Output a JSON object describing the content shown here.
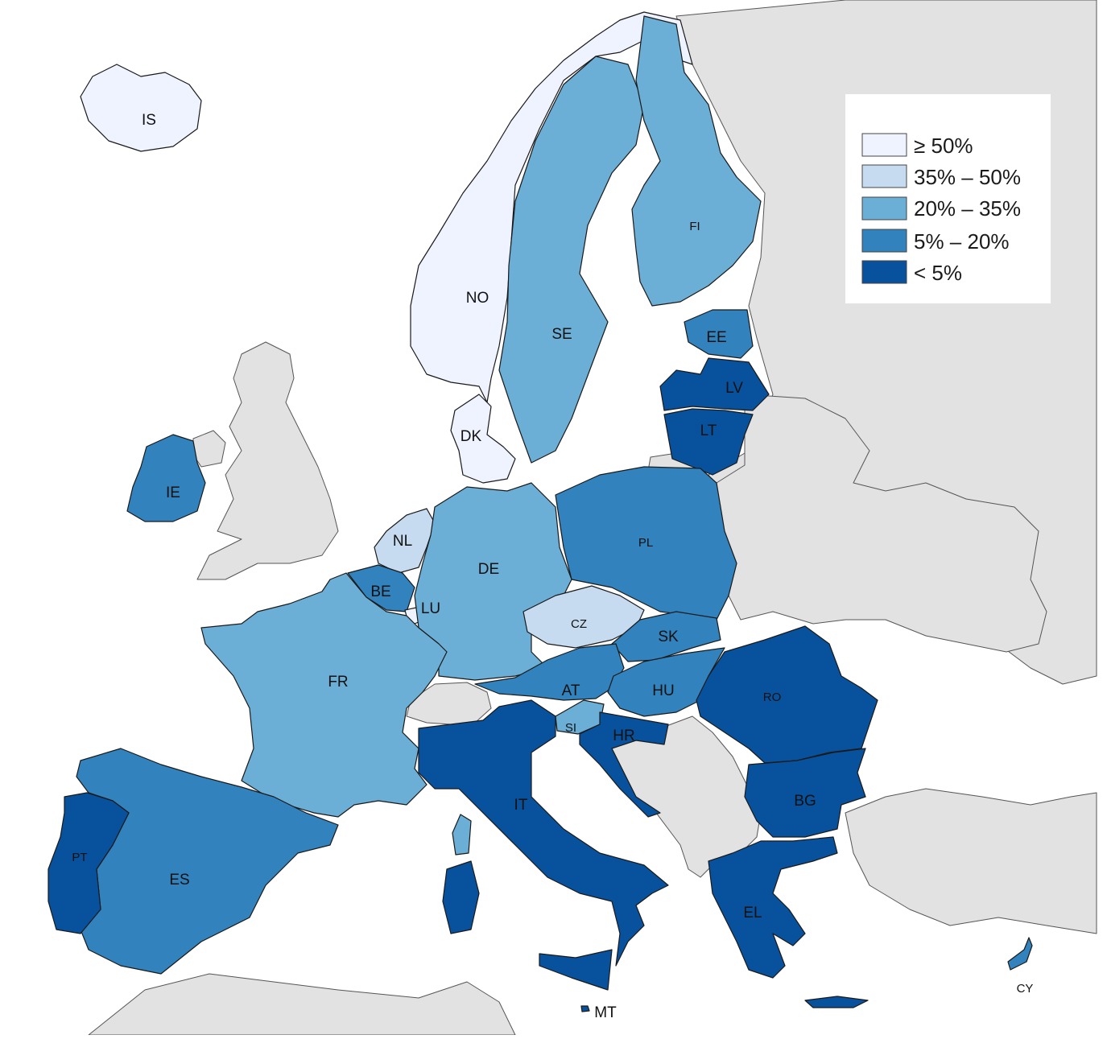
{
  "legend": {
    "classes": [
      {
        "id": "c1",
        "label": "≥ 50%",
        "color": "#eff3ff"
      },
      {
        "id": "c2",
        "label": "35% – 50%",
        "color": "#c6dbef"
      },
      {
        "id": "c3",
        "label": "20% – 35%",
        "color": "#6baed6"
      },
      {
        "id": "c4",
        "label": "5% – 20%",
        "color": "#3182bd"
      },
      {
        "id": "c5",
        "label": "< 5%",
        "color": "#08519c"
      }
    ]
  },
  "colors": {
    "non_member_fill": "#e2e2e2",
    "sea": "#ffffff",
    "border": "#1a1a1a"
  },
  "countries": [
    {
      "code": "IS",
      "class": "c1"
    },
    {
      "code": "NO",
      "class": "c1"
    },
    {
      "code": "DK",
      "class": "c1"
    },
    {
      "code": "SE",
      "class": "c3"
    },
    {
      "code": "FI",
      "class": "c3"
    },
    {
      "code": "EE",
      "class": "c4"
    },
    {
      "code": "LV",
      "class": "c5"
    },
    {
      "code": "LT",
      "class": "c5"
    },
    {
      "code": "IE",
      "class": "c4"
    },
    {
      "code": "NL",
      "class": "c2"
    },
    {
      "code": "BE",
      "class": "c4"
    },
    {
      "code": "LU",
      "class": "c1"
    },
    {
      "code": "DE",
      "class": "c3"
    },
    {
      "code": "PL",
      "class": "c4"
    },
    {
      "code": "CZ",
      "class": "c2"
    },
    {
      "code": "SK",
      "class": "c4"
    },
    {
      "code": "AT",
      "class": "c4"
    },
    {
      "code": "HU",
      "class": "c4"
    },
    {
      "code": "SI",
      "class": "c3"
    },
    {
      "code": "HR",
      "class": "c5"
    },
    {
      "code": "RO",
      "class": "c5"
    },
    {
      "code": "BG",
      "class": "c5"
    },
    {
      "code": "FR",
      "class": "c3"
    },
    {
      "code": "ES",
      "class": "c4"
    },
    {
      "code": "PT",
      "class": "c5"
    },
    {
      "code": "IT",
      "class": "c5"
    },
    {
      "code": "EL",
      "class": "c5"
    },
    {
      "code": "MT",
      "class": "c5"
    },
    {
      "code": "CY",
      "class": "c4"
    }
  ]
}
